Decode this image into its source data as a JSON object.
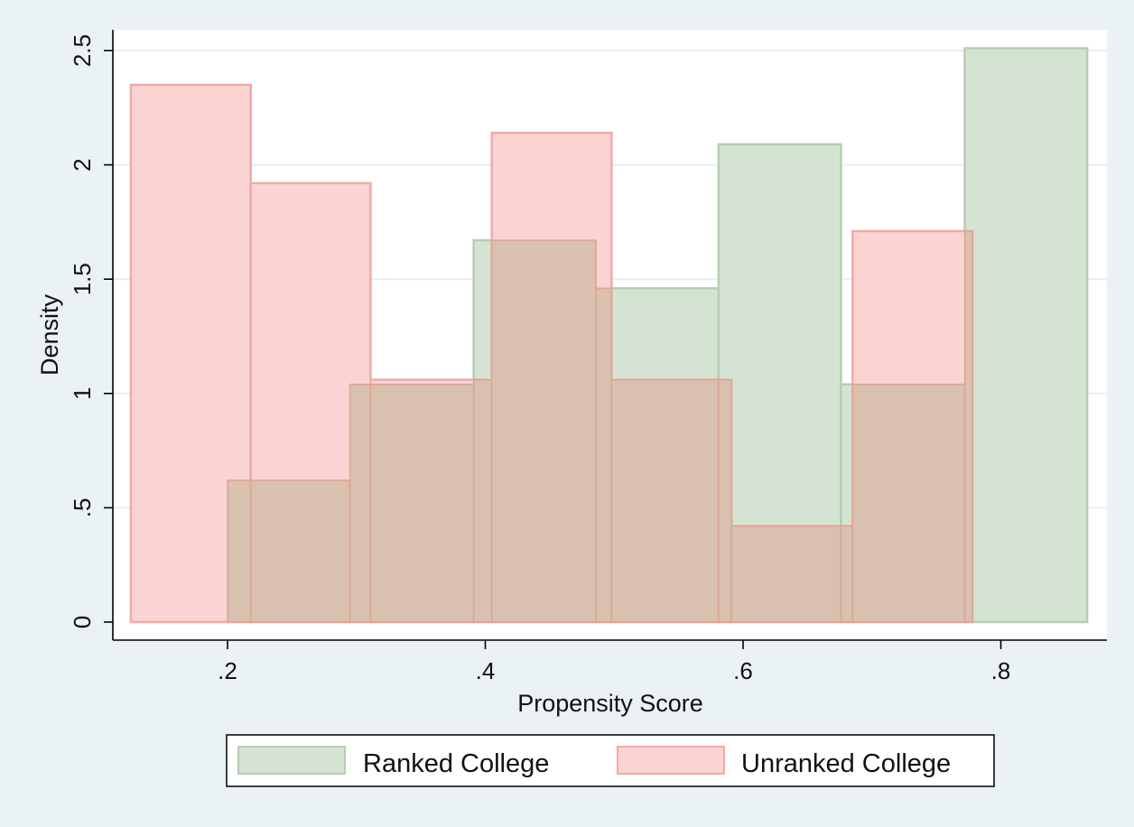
{
  "chart_data": {
    "type": "bar",
    "subtype": "overlaid-histogram",
    "xlabel": "Propensity Score",
    "ylabel": "Density",
    "xlim": [
      0.125,
      0.87
    ],
    "ylim": [
      0,
      2.5
    ],
    "xticks": [
      {
        "value": 0.2,
        "label": ".2"
      },
      {
        "value": 0.4,
        "label": ".4"
      },
      {
        "value": 0.6,
        "label": ".6"
      },
      {
        "value": 0.8,
        "label": ".8"
      }
    ],
    "yticks": [
      {
        "value": 0,
        "label": "0"
      },
      {
        "value": 0.5,
        "label": ".5"
      },
      {
        "value": 1,
        "label": "1"
      },
      {
        "value": 1.5,
        "label": "1.5"
      },
      {
        "value": 2,
        "label": "2"
      },
      {
        "value": 2.5,
        "label": "2.5"
      }
    ],
    "grid": "horizontal",
    "legend_position": "bottom",
    "series": [
      {
        "name": "Ranked College",
        "fill": "#d5e4d2",
        "stroke": "#b5cfb0",
        "bins": [
          {
            "x0": 0.2,
            "x1": 0.295,
            "y": 0.62
          },
          {
            "x0": 0.295,
            "x1": 0.391,
            "y": 1.04
          },
          {
            "x0": 0.391,
            "x1": 0.486,
            "y": 1.67
          },
          {
            "x0": 0.486,
            "x1": 0.581,
            "y": 1.46
          },
          {
            "x0": 0.581,
            "x1": 0.676,
            "y": 2.09
          },
          {
            "x0": 0.676,
            "x1": 0.772,
            "y": 1.04
          },
          {
            "x0": 0.772,
            "x1": 0.867,
            "y": 2.51
          }
        ]
      },
      {
        "name": "Unranked College",
        "fill": "#f9d4d2",
        "stroke": "#f1aaa6",
        "bins": [
          {
            "x0": 0.125,
            "x1": 0.218,
            "y": 2.35
          },
          {
            "x0": 0.218,
            "x1": 0.311,
            "y": 1.92
          },
          {
            "x0": 0.311,
            "x1": 0.405,
            "y": 1.06
          },
          {
            "x0": 0.405,
            "x1": 0.498,
            "y": 2.14
          },
          {
            "x0": 0.498,
            "x1": 0.591,
            "y": 1.06
          },
          {
            "x0": 0.591,
            "x1": 0.685,
            "y": 0.42
          },
          {
            "x0": 0.685,
            "x1": 0.778,
            "y": 1.71
          }
        ]
      }
    ],
    "overlap_fill": "#d9c0af",
    "overlap_stroke": "#dca594"
  }
}
